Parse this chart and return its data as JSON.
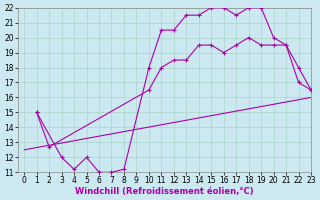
{
  "xlabel": "Windchill (Refroidissement éolien,°C)",
  "xlim": [
    -0.5,
    23
  ],
  "ylim": [
    11,
    22
  ],
  "xticks": [
    0,
    1,
    2,
    3,
    4,
    5,
    6,
    7,
    8,
    9,
    10,
    11,
    12,
    13,
    14,
    15,
    16,
    17,
    18,
    19,
    20,
    21,
    22,
    23
  ],
  "yticks": [
    11,
    12,
    13,
    14,
    15,
    16,
    17,
    18,
    19,
    20,
    21,
    22
  ],
  "background_color": "#cce8f0",
  "grid_color": "#aad4cc",
  "line_color": "#aa00aa",
  "line1_x": [
    1,
    3,
    4,
    5,
    6,
    7,
    8,
    10,
    11,
    12,
    13,
    14,
    15,
    16,
    17,
    18,
    19,
    20,
    21,
    22,
    23
  ],
  "line1_y": [
    15,
    12,
    11.2,
    12,
    11,
    11,
    11.2,
    18.0,
    20.5,
    20.5,
    21.5,
    21.5,
    22,
    22,
    21.5,
    22.0,
    22,
    20,
    19.5,
    17,
    16.5
  ],
  "line2_x": [
    1,
    2,
    10,
    11,
    12,
    13,
    14,
    15,
    16,
    17,
    18,
    19,
    20,
    21,
    22,
    23
  ],
  "line2_y": [
    15,
    12.7,
    16.5,
    18.0,
    18.5,
    18.5,
    19.5,
    19.5,
    19.0,
    19.5,
    20.0,
    19.5,
    19.5,
    19.5,
    18.0,
    16.5
  ],
  "line3_x": [
    0,
    23
  ],
  "line3_y": [
    12.5,
    16.0
  ],
  "marker_size": 3,
  "tick_fontsize": 5.5,
  "label_fontsize": 6
}
